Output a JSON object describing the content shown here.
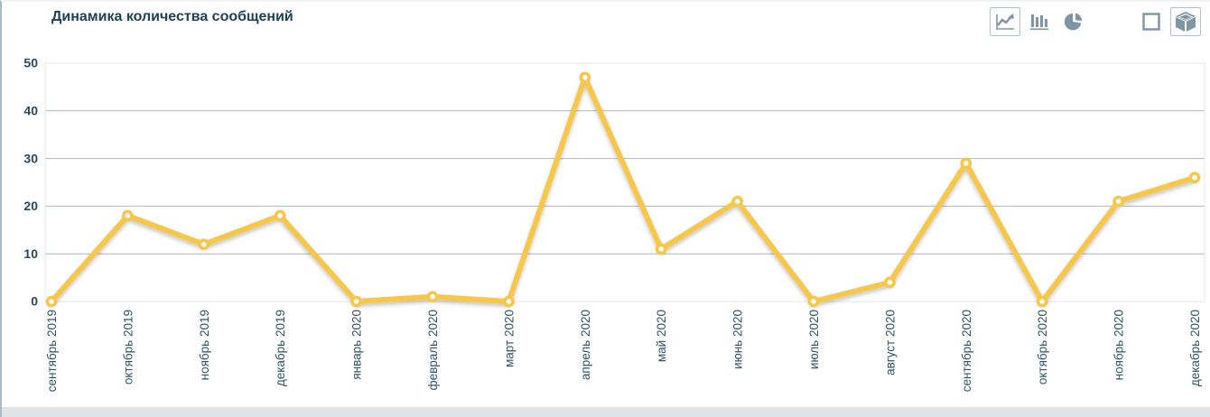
{
  "panel": {
    "title": "Динамика количества сообщений"
  },
  "toolbar": {
    "chart_type_buttons": [
      {
        "name": "line-chart",
        "selected": true
      },
      {
        "name": "bar-chart",
        "selected": false
      },
      {
        "name": "pie-chart",
        "selected": false
      }
    ],
    "view_buttons": [
      {
        "name": "flat-2d",
        "selected": false
      },
      {
        "name": "cube-3d",
        "selected": true
      }
    ]
  },
  "chart_data": {
    "type": "line",
    "title": "Динамика количества сообщений",
    "categories": [
      "сентябрь 2019",
      "октябрь 2019",
      "ноябрь 2019",
      "декабрь 2019",
      "январь 2020",
      "февраль 2020",
      "март 2020",
      "апрель 2020",
      "май 2020",
      "июнь 2020",
      "июль 2020",
      "август 2020",
      "сентябрь 2020",
      "октябрь 2020",
      "ноябрь 2020",
      "декабрь 2020"
    ],
    "values": [
      0,
      18,
      12,
      18,
      0,
      1,
      0,
      47,
      11,
      21,
      0,
      4,
      29,
      0,
      21,
      26
    ],
    "xlabel": "",
    "ylabel": "",
    "ylim": [
      0,
      50
    ],
    "yticks": [
      0,
      10,
      20,
      30,
      40,
      50
    ],
    "grid": true,
    "legend": "none",
    "series_color": "#f7c74b",
    "marker_fill": "#ffffff",
    "grid_color": "#adb8bf",
    "edge_grid_color": "#e4e7ea",
    "tick_label_color": "#27495c",
    "x_label_color": "#2d5468"
  }
}
